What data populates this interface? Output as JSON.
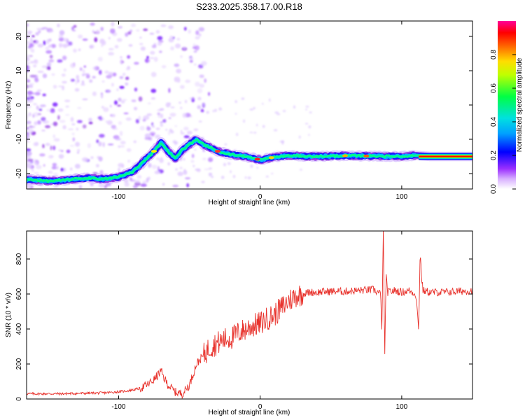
{
  "page": {
    "title": "S233.2025.358.17.00.R18"
  },
  "chart_data": [
    {
      "type": "heatmap",
      "xlabel": "Height of straight line (km)",
      "ylabel": "Frequency (Hz)",
      "xlim": [
        -165,
        150
      ],
      "ylim": [
        -24.5,
        24.5
      ],
      "xticks": [
        -100,
        0,
        100
      ],
      "yticks": [
        -20,
        -10,
        0,
        10,
        20
      ],
      "colorbar": {
        "label": "Normalized spectral amplitude",
        "range": [
          0,
          1
        ],
        "ticks": [
          "0.0",
          "0.2",
          "0.4",
          "0.6",
          "0.8"
        ],
        "colors": [
          "#ffffff",
          "#9b30ff",
          "#0000ff",
          "#00ccff",
          "#00ff66",
          "#ffff00",
          "#ff8800",
          "#ff0000",
          "#ff00aa"
        ]
      },
      "ridge": {
        "x": [
          -160,
          -150,
          -140,
          -130,
          -120,
          -110,
          -100,
          -90,
          -85,
          -80,
          -75,
          -70,
          -65,
          -60,
          -55,
          -50,
          -45,
          -40,
          -35,
          -30,
          -20,
          -10,
          0,
          10,
          20,
          40,
          60,
          80,
          100,
          110,
          120,
          150
        ],
        "y": [
          -21.8,
          -22.2,
          -22.0,
          -21.5,
          -21.3,
          -21.6,
          -21.0,
          -19.5,
          -17.5,
          -15.5,
          -13.5,
          -11.0,
          -13.5,
          -15.5,
          -13.0,
          -11.5,
          -10.0,
          -11.5,
          -12.5,
          -13.5,
          -14.5,
          -15.0,
          -16.0,
          -15.2,
          -14.8,
          -15.0,
          -14.8,
          -14.9,
          -15.0,
          -14.7,
          -15.0,
          -15.0
        ]
      }
    },
    {
      "type": "line",
      "xlabel": "Height of straight line (km)",
      "ylabel": "SNR (10 * v/v)",
      "xlim": [
        -165,
        150
      ],
      "ylim": [
        0,
        960
      ],
      "xticks": [
        -100,
        0,
        100
      ],
      "yticks": [
        0,
        200,
        400,
        600,
        800
      ],
      "series": [
        {
          "color": "#e8322c",
          "x": [
            -165,
            -140,
            -110,
            -95,
            -85,
            -80,
            -75,
            -72,
            -70,
            -68,
            -65,
            -60,
            -55,
            -50,
            -45,
            -40,
            -35,
            -30,
            -25,
            -20,
            -15,
            -10,
            -5,
            0,
            5,
            10,
            15,
            20,
            25,
            30,
            35,
            40,
            50,
            60,
            70,
            80,
            85,
            86,
            87,
            88,
            89,
            90,
            95,
            100,
            105,
            110,
            112,
            113,
            114,
            115,
            120,
            130,
            140,
            150
          ],
          "y": [
            30,
            30,
            35,
            45,
            60,
            80,
            110,
            140,
            160,
            120,
            80,
            40,
            30,
            80,
            200,
            250,
            300,
            320,
            340,
            350,
            380,
            400,
            420,
            430,
            460,
            480,
            520,
            560,
            590,
            600,
            610,
            610,
            615,
            615,
            620,
            625,
            600,
            400,
            960,
            250,
            700,
            610,
            620,
            610,
            620,
            600,
            400,
            850,
            700,
            620,
            610,
            610,
            615,
            620
          ]
        }
      ]
    }
  ]
}
